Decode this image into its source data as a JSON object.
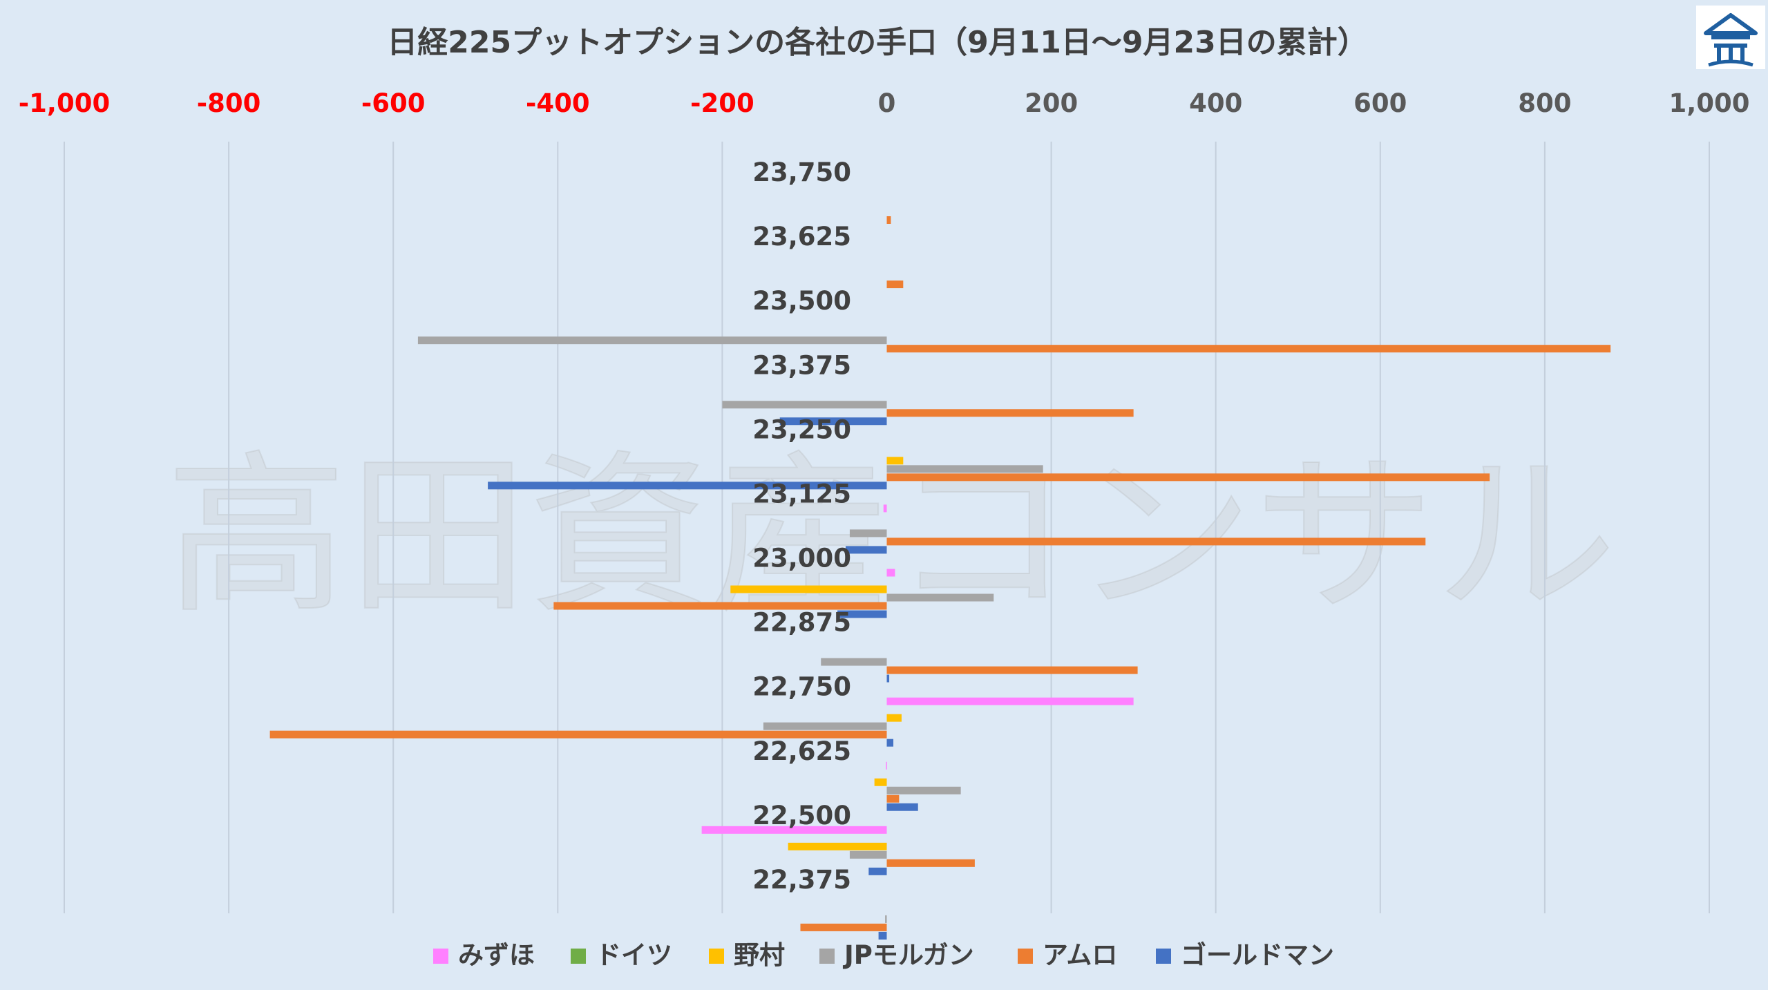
{
  "chart_data": {
    "type": "bar",
    "orientation": "horizontal",
    "title": "日経225プットオプションの各社の手口（9月11日〜9月23日の累計）",
    "watermark": "高田資産コンサル",
    "logo": "house-logo",
    "xlim": [
      -1000,
      1000
    ],
    "xticks": [
      -1000,
      -800,
      -600,
      -400,
      -200,
      0,
      200,
      400,
      600,
      800,
      1000
    ],
    "xtick_labels": [
      "-1,000",
      "-800",
      "-600",
      "-400",
      "-200",
      "0",
      "200",
      "400",
      "600",
      "800",
      "1,000"
    ],
    "negative_tick_color": "#ff0000",
    "positive_tick_color": "#595959",
    "grid": "vertical",
    "legend_position": "bottom",
    "categories": [
      "23,750",
      "23,625",
      "23,500",
      "23,375",
      "23,250",
      "23,125",
      "23,000",
      "22,875",
      "22,750",
      "22,625",
      "22,500",
      "22,375"
    ],
    "series": [
      {
        "name": "みずほ",
        "color": "#ff80ff",
        "values": [
          0,
          0,
          0,
          0,
          0,
          -4,
          10,
          0,
          300,
          -1,
          -225,
          0
        ]
      },
      {
        "name": "ドイツ",
        "color": "#70ad47",
        "values": [
          0,
          0,
          0,
          0,
          0,
          0,
          0,
          0,
          0,
          0,
          0,
          0
        ]
      },
      {
        "name": "野村",
        "color": "#ffc000",
        "values": [
          0,
          0,
          0,
          0,
          20,
          0,
          -190,
          0,
          18,
          -15,
          -120,
          0
        ]
      },
      {
        "name": "JPモルガン",
        "color": "#a5a5a5",
        "values": [
          0,
          0,
          -570,
          -200,
          190,
          -45,
          130,
          -80,
          -150,
          90,
          -45,
          -2
        ]
      },
      {
        "name": "アムロ",
        "color": "#ed7d31",
        "values": [
          5,
          20,
          880,
          300,
          733,
          655,
          -405,
          305,
          -750,
          15,
          107,
          -105
        ]
      },
      {
        "name": "ゴールドマン",
        "color": "#4472c4",
        "values": [
          0,
          0,
          0,
          -130,
          -485,
          -50,
          -60,
          3,
          8,
          38,
          -22,
          -10
        ]
      }
    ]
  }
}
